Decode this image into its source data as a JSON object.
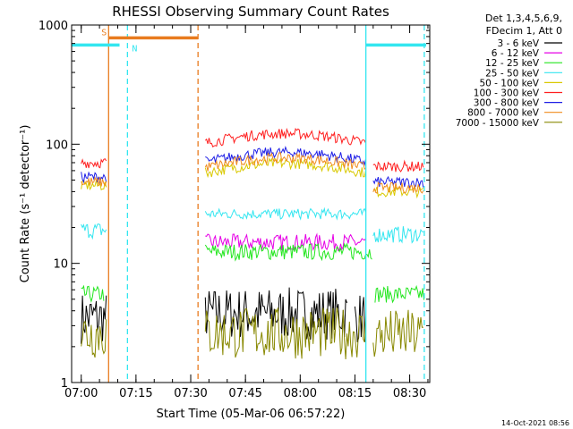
{
  "chart_data": {
    "type": "line",
    "title": "RHESSI Observing Summary Count Rates",
    "xlabel": "Start Time (05-Mar-06 06:57:22)",
    "ylabel": "Count Rate (s⁻¹ detector⁻¹)",
    "y_scale": "log",
    "ylim": [
      1,
      1000
    ],
    "xlim": [
      "06:57:22",
      "08:35:30"
    ],
    "x_ticks": [
      "07:00",
      "07:15",
      "07:30",
      "07:45",
      "08:00",
      "08:15",
      "08:30"
    ],
    "y_ticks": [
      "1",
      "10",
      "100",
      "1000"
    ],
    "legend_header": [
      "Det 1,3,4,5,6,9,",
      "FDecim 1, Att 0"
    ],
    "legend_position": "right",
    "timestamp": "14-Oct-2021 08:56",
    "flags": [
      {
        "label": "S",
        "color": "#e87b1e",
        "start": "07:07:30",
        "end": "07:32:00",
        "level": 780
      },
      {
        "label": "N",
        "color": "#33e6f0",
        "start": "06:57:22",
        "end": "07:10:30",
        "level": 680
      },
      {
        "label": "",
        "color": "#33e6f0",
        "start": "08:18:00",
        "end": "08:34:30",
        "level": 680
      }
    ],
    "markers": [
      {
        "time": "07:07:30",
        "color": "#e87b1e",
        "style": "solid"
      },
      {
        "time": "07:32:00",
        "color": "#e87b1e",
        "style": "dashed"
      },
      {
        "time": "07:12:40",
        "color": "#33e6f0",
        "style": "dashed"
      },
      {
        "time": "08:18:00",
        "color": "#33e6f0",
        "style": "solid"
      },
      {
        "time": "08:34:00",
        "color": "#33e6f0",
        "style": "dashed"
      }
    ],
    "series": [
      {
        "name": "3 - 6 keV",
        "color": "#000000",
        "values": [
          [
            3.5,
            "07:00",
            "07:07"
          ],
          [
            3.8,
            "07:34",
            "08:13"
          ],
          [
            3.5,
            "08:15",
            "08:18"
          ]
        ]
      },
      {
        "name": "6 - 12 keV",
        "color": "#e600e6",
        "values": [
          [
            15.0,
            "07:34",
            "08:18"
          ]
        ]
      },
      {
        "name": "12 - 25 keV",
        "color": "#22e61e",
        "values": [
          [
            5.5,
            "07:00",
            "07:06:30"
          ],
          [
            12.5,
            "07:34",
            "08:20"
          ],
          [
            5.5,
            "08:20:30",
            "08:34"
          ]
        ]
      },
      {
        "name": "25 - 50 keV",
        "color": "#33e6f0",
        "values": [
          [
            19.0,
            "07:00",
            "07:07"
          ],
          [
            26.0,
            "07:34",
            "08:18"
          ],
          [
            17.5,
            "08:20",
            "08:34"
          ]
        ]
      },
      {
        "name": "50 - 100 keV",
        "color": "#d9c900",
        "values": [
          [
            45.0,
            "07:00",
            "07:07"
          ],
          [
            63.0,
            "07:34",
            "08:18"
          ],
          [
            40.0,
            "08:20",
            "08:34"
          ]
        ]
      },
      {
        "name": "100 - 300 keV",
        "color": "#ff1f1f",
        "values": [
          [
            70.0,
            "07:00",
            "07:07"
          ],
          [
            112.0,
            "07:34",
            "08:18"
          ],
          [
            65.0,
            "08:20",
            "08:34"
          ]
        ]
      },
      {
        "name": "300 - 800 keV",
        "color": "#1f1fe6",
        "values": [
          [
            53.0,
            "07:00",
            "07:07"
          ],
          [
            78.0,
            "07:34",
            "08:18"
          ],
          [
            48.0,
            "08:20",
            "08:34"
          ]
        ]
      },
      {
        "name": "800 - 7000 keV",
        "color": "#f08c1e",
        "values": [
          [
            48.0,
            "07:00",
            "07:07"
          ],
          [
            70.0,
            "07:34",
            "08:18"
          ],
          [
            43.0,
            "08:20",
            "08:34"
          ]
        ]
      },
      {
        "name": "7000 - 15000 keV",
        "color": "#888800",
        "values": [
          [
            2.6,
            "07:00",
            "07:07"
          ],
          [
            2.6,
            "07:34",
            "08:18"
          ],
          [
            2.5,
            "08:20",
            "08:34"
          ]
        ]
      }
    ]
  }
}
